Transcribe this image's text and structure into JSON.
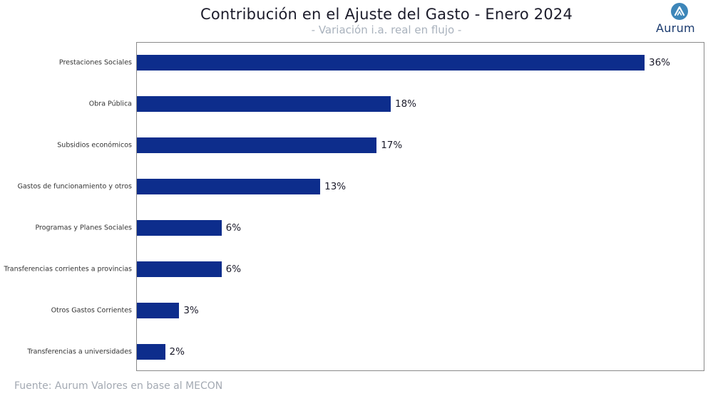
{
  "header": {
    "title": "Contribución en el Ajuste del Gasto - Enero 2024",
    "subtitle": "- Variación  i.a. real en flujo -"
  },
  "logo": {
    "text": "Aurum",
    "icon": "aurum-logo-icon",
    "color": "#3d86b9"
  },
  "footer": {
    "source": "Fuente: Aurum Valores en base al MECON"
  },
  "colors": {
    "bar": "#0d2d8c"
  },
  "chart_data": {
    "type": "bar",
    "orientation": "horizontal",
    "title": "Contribución en el Ajuste del Gasto - Enero 2024",
    "subtitle": "- Variación  i.a. real en flujo -",
    "xlabel": "",
    "ylabel": "",
    "xlim": [
      0,
      40
    ],
    "grid": false,
    "categories": [
      "Prestaciones Sociales",
      "Obra Pública",
      "Subsidios económicos",
      "Gastos de funcionamiento y otros",
      "Programas y Planes Sociales",
      "Transferencias corrientes a provincias",
      "Otros Gastos Corrientes",
      "Transferencias a universidades"
    ],
    "values": [
      36,
      18,
      17,
      13,
      6,
      6,
      3,
      2
    ],
    "labels": [
      "36%",
      "18%",
      "17%",
      "13%",
      "6%",
      "6%",
      "3%",
      "2%"
    ]
  }
}
